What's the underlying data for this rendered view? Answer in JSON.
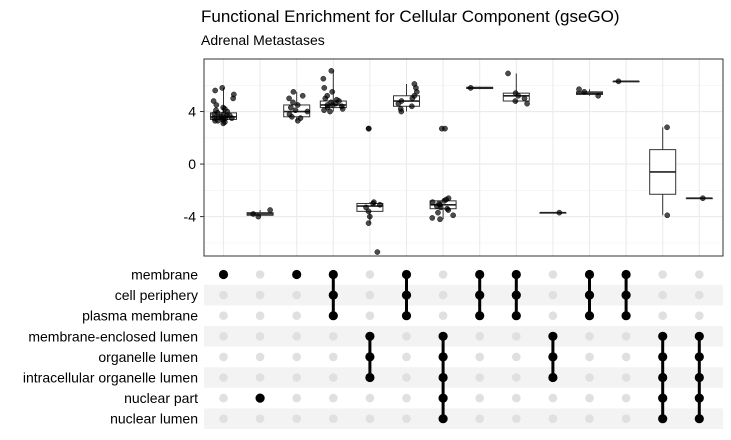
{
  "chart_data": {
    "type": "upset-boxplot",
    "title": "Functional Enrichment for Cellular Component (gseGO)",
    "subtitle": "Adrenal Metastases",
    "y_ticks": [
      4,
      0,
      -4
    ],
    "ylim": [
      -7,
      8
    ],
    "grid": true,
    "sets": [
      "membrane",
      "cell periphery",
      "plasma membrane",
      "membrane-enclosed lumen",
      "organelle lumen",
      "intracellular organelle lumen",
      "nuclear part",
      "nuclear lumen"
    ],
    "intersections": [
      {
        "members": [
          "membrane"
        ],
        "box": [
          3.2,
          3.4,
          3.6,
          3.9,
          5.8
        ],
        "points": [
          3.1,
          3.2,
          3.3,
          3.3,
          3.4,
          3.4,
          3.5,
          3.5,
          3.5,
          3.6,
          3.6,
          3.7,
          3.7,
          3.8,
          3.8,
          3.9,
          4.0,
          4.1,
          4.2,
          4.3,
          4.5,
          4.8,
          5.0,
          5.3,
          5.6,
          5.8
        ]
      },
      {
        "members": [
          "nuclear part"
        ],
        "box": [
          -4.0,
          -3.9,
          -3.8,
          -3.7,
          -3.5
        ],
        "points": [
          -3.5,
          -3.8,
          -4.0
        ]
      },
      {
        "members": [
          "membrane"
        ],
        "box": [
          3.3,
          3.6,
          4.0,
          4.5,
          5.5
        ],
        "points": [
          3.3,
          3.5,
          3.6,
          3.8,
          4.0,
          4.1,
          4.3,
          4.5,
          4.7,
          5.0,
          5.2,
          5.5
        ]
      },
      {
        "members": [
          "membrane",
          "cell periphery",
          "plasma membrane"
        ],
        "box": [
          4.0,
          4.3,
          4.5,
          4.8,
          7.1
        ],
        "points": [
          4.0,
          4.1,
          4.2,
          4.3,
          4.4,
          4.5,
          4.5,
          4.6,
          4.7,
          4.8,
          4.9,
          5.0,
          5.2,
          5.5,
          5.8,
          6.5,
          7.1
        ]
      },
      {
        "members": [
          "membrane-enclosed lumen",
          "organelle lumen",
          "intracellular organelle lumen"
        ],
        "box": [
          -4.5,
          -3.6,
          -3.2,
          -3.0,
          -2.9
        ],
        "points": [
          -2.9,
          -3.0,
          -3.1,
          -3.3,
          -3.6,
          -4.0,
          -4.5,
          -6.7,
          2.7,
          2.7
        ]
      },
      {
        "members": [
          "membrane",
          "cell periphery",
          "plasma membrane"
        ],
        "box": [
          4.0,
          4.4,
          4.8,
          5.2,
          6.1
        ],
        "points": [
          4.0,
          4.2,
          4.4,
          4.6,
          4.8,
          5.0,
          5.2,
          5.5,
          5.8,
          6.1
        ]
      },
      {
        "members": [
          "membrane-enclosed lumen",
          "organelle lumen",
          "intracellular organelle lumen",
          "nuclear part",
          "nuclear lumen"
        ],
        "box": [
          -4.2,
          -3.4,
          -3.1,
          -2.8,
          -2.6
        ],
        "points": [
          -2.6,
          -2.7,
          -2.8,
          -2.9,
          -3.0,
          -3.1,
          -3.2,
          -3.3,
          -3.4,
          -3.5,
          -3.7,
          -3.9,
          -4.1,
          -4.2,
          2.7,
          2.7
        ]
      },
      {
        "members": [
          "membrane",
          "cell periphery",
          "plasma membrane"
        ],
        "box": [
          5.7,
          5.75,
          5.8,
          5.85,
          5.9
        ],
        "points": [
          5.8
        ]
      },
      {
        "members": [
          "membrane",
          "cell periphery",
          "plasma membrane"
        ],
        "box": [
          4.6,
          4.8,
          5.2,
          5.4,
          6.9
        ],
        "points": [
          4.6,
          4.8,
          5.0,
          5.2,
          5.4,
          6.9
        ]
      },
      {
        "members": [
          "membrane-enclosed lumen",
          "organelle lumen",
          "intracellular organelle lumen"
        ],
        "box": [
          -3.7,
          -3.7,
          -3.7,
          -3.7,
          -3.7
        ],
        "points": [
          -3.7
        ]
      },
      {
        "members": [
          "membrane",
          "cell periphery",
          "plasma membrane"
        ],
        "box": [
          5.2,
          5.3,
          5.4,
          5.5,
          5.7
        ],
        "points": [
          5.2,
          5.5,
          5.7
        ]
      },
      {
        "members": [
          "membrane",
          "cell periphery",
          "plasma membrane"
        ],
        "box": [
          6.3,
          6.3,
          6.3,
          6.3,
          6.3
        ],
        "points": [
          6.3
        ]
      },
      {
        "members": [
          "membrane-enclosed lumen",
          "organelle lumen",
          "intracellular organelle lumen",
          "nuclear part",
          "nuclear lumen"
        ],
        "box": [
          -3.9,
          -2.3,
          -0.6,
          1.1,
          2.8
        ],
        "points": [
          -3.9,
          2.8
        ]
      },
      {
        "members": [
          "membrane-enclosed lumen",
          "organelle lumen",
          "intracellular organelle lumen",
          "nuclear part",
          "nuclear lumen"
        ],
        "box": [
          -2.6,
          -2.6,
          -2.6,
          -2.6,
          -2.6
        ],
        "points": [
          -2.6
        ]
      }
    ]
  }
}
